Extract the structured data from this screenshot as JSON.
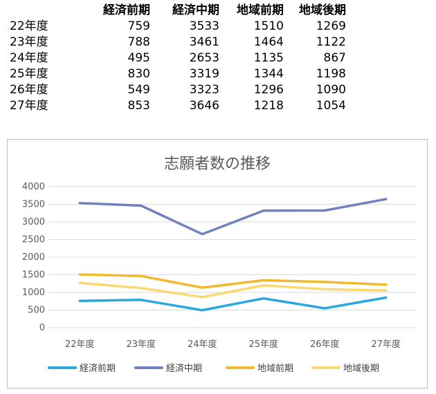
{
  "table": {
    "headers": [
      "",
      "経済前期",
      "経済中期",
      "地域前期",
      "地域後期"
    ],
    "rows": [
      {
        "label": "22年度",
        "values": [
          759,
          3533,
          1510,
          1269
        ]
      },
      {
        "label": "23年度",
        "values": [
          788,
          3461,
          1464,
          1122
        ]
      },
      {
        "label": "24年度",
        "values": [
          495,
          2653,
          1135,
          867
        ]
      },
      {
        "label": "25年度",
        "values": [
          830,
          3319,
          1344,
          1198
        ]
      },
      {
        "label": "26年度",
        "values": [
          549,
          3323,
          1296,
          1090
        ]
      },
      {
        "label": "27年度",
        "values": [
          853,
          3646,
          1218,
          1054
        ]
      }
    ]
  },
  "chart_data": {
    "type": "line",
    "title": "志願者数の推移",
    "xlabel": "",
    "ylabel": "",
    "categories": [
      "22年度",
      "23年度",
      "24年度",
      "25年度",
      "26年度",
      "27年度"
    ],
    "ylim": [
      0,
      4000
    ],
    "yticks": [
      0,
      500,
      1000,
      1500,
      2000,
      2500,
      3000,
      3500,
      4000
    ],
    "grid": true,
    "legend": "bottom",
    "series": [
      {
        "name": "経済前期",
        "color": "#2aa7df",
        "values": [
          759,
          788,
          495,
          830,
          549,
          853
        ]
      },
      {
        "name": "経済中期",
        "color": "#7181c0",
        "values": [
          3533,
          3461,
          2653,
          3319,
          3323,
          3646
        ]
      },
      {
        "name": "地域前期",
        "color": "#f2b82e",
        "values": [
          1510,
          1464,
          1135,
          1344,
          1296,
          1218
        ]
      },
      {
        "name": "地域後期",
        "color": "#fbd874",
        "values": [
          1269,
          1122,
          867,
          1198,
          1090,
          1054
        ]
      }
    ]
  }
}
